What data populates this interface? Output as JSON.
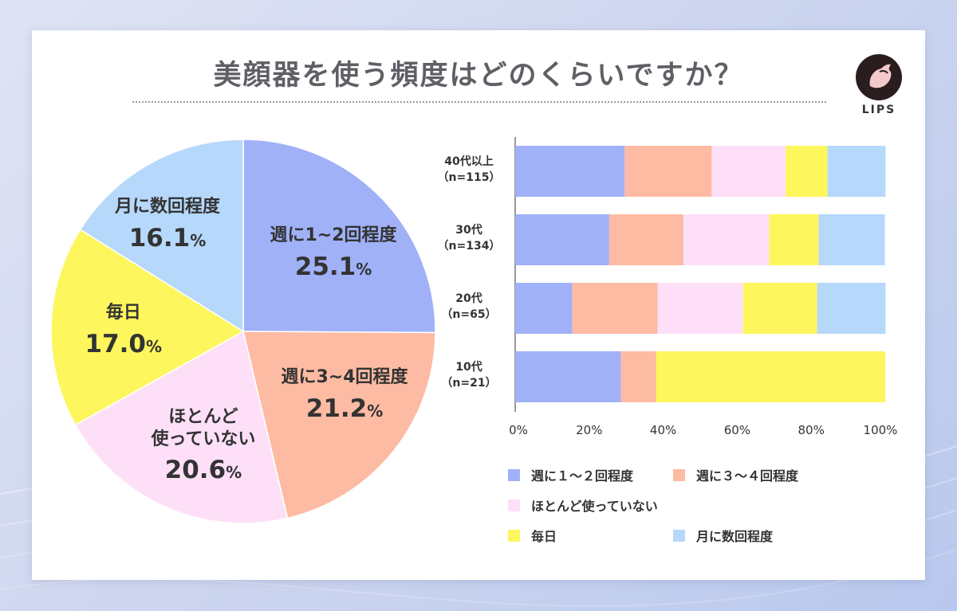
{
  "title": "美顔器を使う頻度はどのくらいですか？",
  "brand": "LIPS",
  "chart_data": [
    {
      "type": "pie",
      "title": "",
      "slices": [
        {
          "name": "週に1~2回程度",
          "label_lines": [
            "週に1~2回程度"
          ],
          "value": 25.1,
          "display": "25.1",
          "color": "#a0b1f8"
        },
        {
          "name": "週に3~4回程度",
          "label_lines": [
            "週に3~4回程度"
          ],
          "value": 21.2,
          "display": "21.2",
          "color": "#fdbba3"
        },
        {
          "name": "ほとんど使っていない",
          "label_lines": [
            "ほとんど",
            "使っていない"
          ],
          "value": 20.6,
          "display": "20.6",
          "color": "#fde0f8"
        },
        {
          "name": "毎日",
          "label_lines": [
            "毎日"
          ],
          "value": 17.0,
          "display": "17.0",
          "color": "#fdf65d"
        },
        {
          "name": "月に数回程度",
          "label_lines": [
            "月に数回程度"
          ],
          "value": 16.1,
          "display": "16.1",
          "color": "#b6d8fb"
        }
      ],
      "unit": "%"
    },
    {
      "type": "bar",
      "orientation": "horizontal",
      "stacked": true,
      "categories": [
        {
          "label": "40代以上",
          "n": "（n=115）"
        },
        {
          "label": "30代",
          "n": "（n=134）"
        },
        {
          "label": "20代",
          "n": "（n=65）"
        },
        {
          "label": "10代",
          "n": "（n=21）"
        }
      ],
      "series": [
        {
          "name": "週に１〜２回程度",
          "color": "#a0b1f8",
          "values": [
            29.6,
            25.4,
            15.4,
            28.6
          ]
        },
        {
          "name": "週に３〜４回程度",
          "color": "#fdbba3",
          "values": [
            23.5,
            20.1,
            23.1,
            9.5
          ]
        },
        {
          "name": "ほとんど使っていない",
          "color": "#fde0f8",
          "values": [
            20.0,
            23.1,
            23.1,
            0
          ]
        },
        {
          "name": "毎日",
          "color": "#fdf65d",
          "values": [
            11.3,
            13.4,
            20.0,
            61.9
          ]
        },
        {
          "name": "月に数回程度",
          "color": "#b6d8fb",
          "values": [
            15.7,
            17.9,
            18.5,
            0
          ]
        }
      ],
      "xlim": [
        0,
        100
      ],
      "ticks": [
        "0%",
        "20%",
        "40%",
        "60%",
        "80%",
        "100%"
      ],
      "grid": false,
      "legend_position": "bottom"
    }
  ]
}
